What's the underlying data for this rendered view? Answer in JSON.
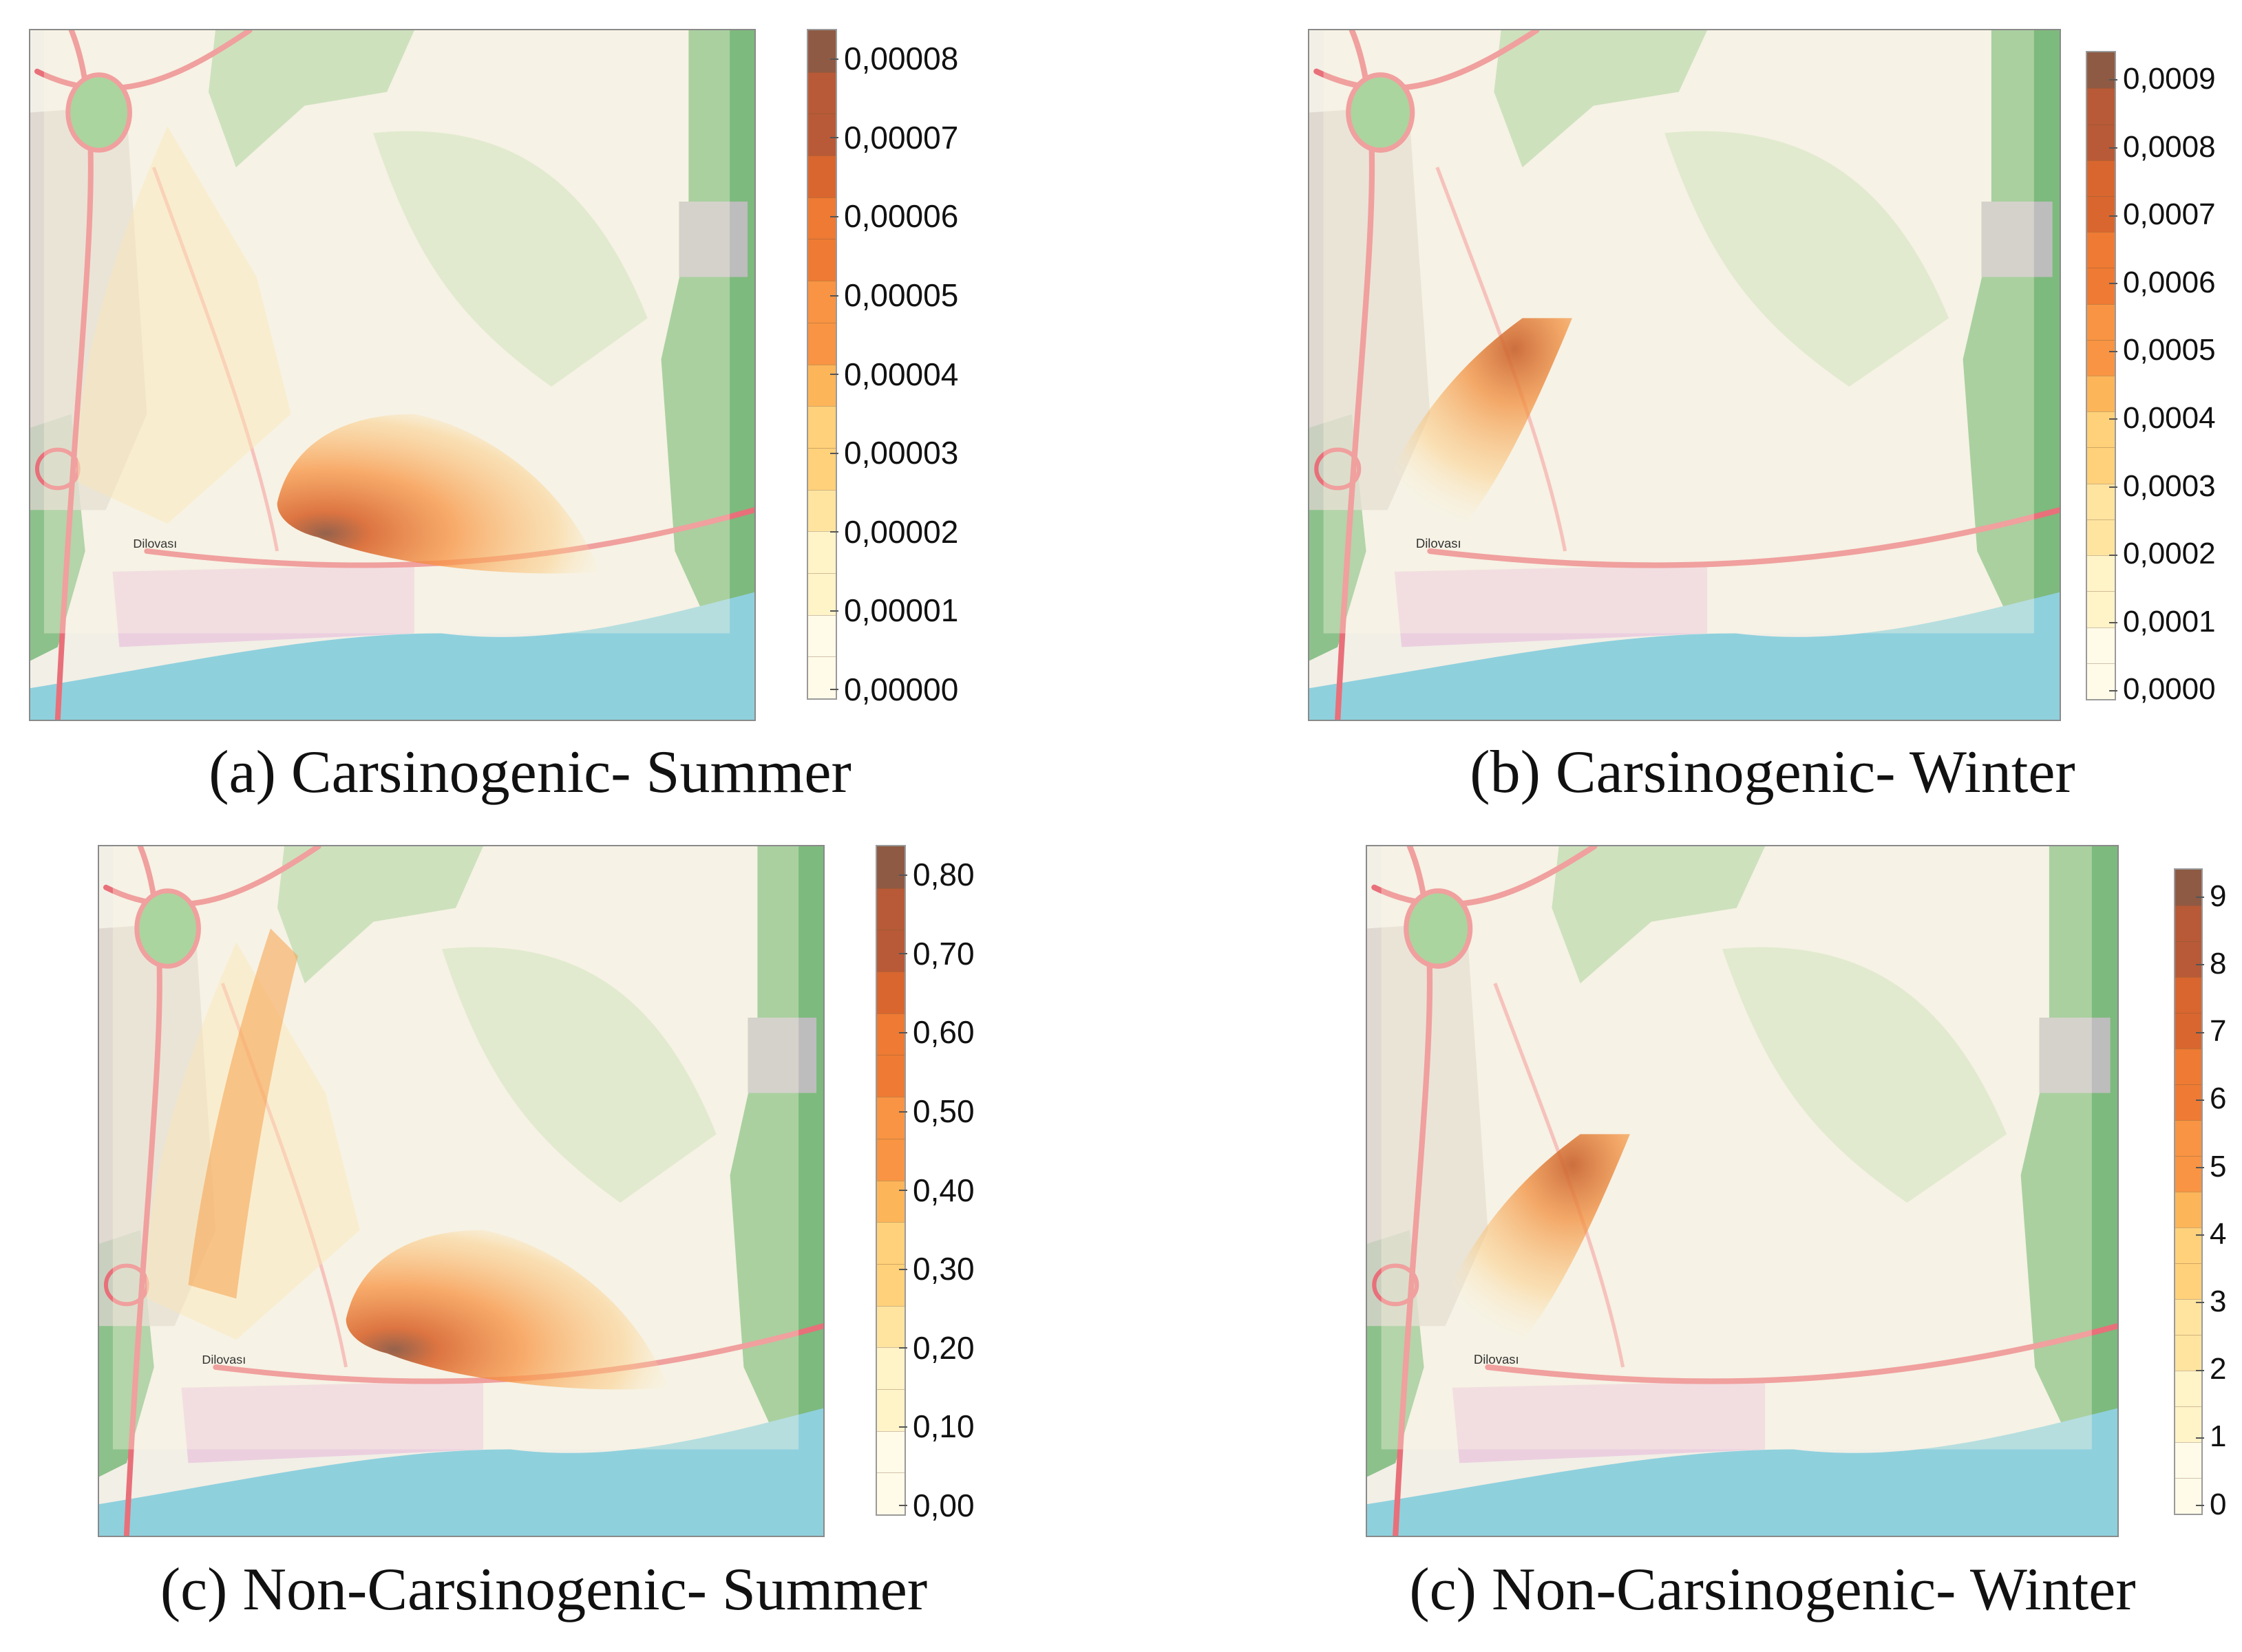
{
  "panels": [
    {
      "caption": "(a) Carsinogenic- Summer",
      "legend": {
        "ticks": [
          "0,00008",
          "0,00007",
          "0,00006",
          "0,00005",
          "0,00004",
          "0,00003",
          "0,00002",
          "0,00001",
          "0,00000"
        ]
      },
      "plume": "summer"
    },
    {
      "caption": "(b) Carsinogenic- Winter",
      "legend": {
        "ticks": [
          "0,0009",
          "0,0008",
          "0,0007",
          "0,0006",
          "0,0005",
          "0,0004",
          "0,0003",
          "0,0002",
          "0,0001",
          "0,0000"
        ]
      },
      "plume": "winter"
    },
    {
      "caption": "(c) Non-Carsinogenic- Summer",
      "legend": {
        "ticks": [
          "0,80",
          "0,70",
          "0,60",
          "0,50",
          "0,40",
          "0,30",
          "0,20",
          "0,10",
          "0,00"
        ]
      },
      "plume": "summer"
    },
    {
      "caption": "(c) Non-Carsinogenic- Winter",
      "legend": {
        "ticks": [
          "9",
          "8",
          "7",
          "6",
          "5",
          "4",
          "3",
          "2",
          "1",
          "0"
        ]
      },
      "plume": "winter"
    }
  ],
  "map_labels": {
    "town": "Dilovası",
    "sea_color": "#8fd0dd",
    "forest_color": "#55a85a",
    "road_color": "#e8707a"
  },
  "legend_colors": [
    "#fffbe8",
    "#fff3c8",
    "#ffe4a0",
    "#ffd17a",
    "#fdb55a",
    "#f89443",
    "#ee7a33",
    "#d9662f",
    "#b85a37",
    "#8f5a44"
  ]
}
